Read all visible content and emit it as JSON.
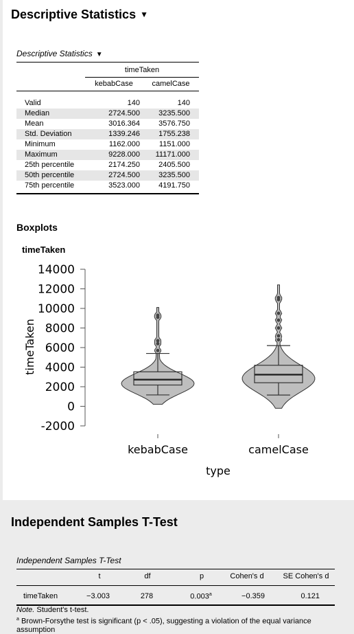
{
  "descriptives": {
    "title": "Descriptive Statistics",
    "table_caption": "Descriptive Statistics",
    "group_header": "timeTaken",
    "columns": [
      "kebabCase",
      "camelCase"
    ],
    "rows": [
      {
        "label": "Valid",
        "values": [
          "140",
          "140"
        ]
      },
      {
        "label": "Median",
        "values": [
          "2724.500",
          "3235.500"
        ]
      },
      {
        "label": "Mean",
        "values": [
          "3016.364",
          "3576.750"
        ]
      },
      {
        "label": "Std. Deviation",
        "values": [
          "1339.246",
          "1755.238"
        ]
      },
      {
        "label": "Minimum",
        "values": [
          "1162.000",
          "1151.000"
        ]
      },
      {
        "label": "Maximum",
        "values": [
          "9228.000",
          "11171.000"
        ]
      },
      {
        "label": "25th percentile",
        "values": [
          "2174.250",
          "2405.500"
        ]
      },
      {
        "label": "50th percentile",
        "values": [
          "2724.500",
          "3235.500"
        ]
      },
      {
        "label": "75th percentile",
        "values": [
          "3523.000",
          "4191.750"
        ]
      }
    ]
  },
  "boxplots": {
    "section_title": "Boxplots",
    "plot_title": "timeTaken"
  },
  "chart_data": {
    "type": "violin-boxplot",
    "ylabel": "timeTaken",
    "xlabel": "type",
    "ylim": [
      -2000,
      14000
    ],
    "yticks": [
      14000,
      12000,
      10000,
      8000,
      6000,
      4000,
      2000,
      0,
      -2000
    ],
    "categories": [
      "kebabCase",
      "camelCase"
    ],
    "groups": [
      {
        "name": "kebabCase",
        "q1": 2174.25,
        "median": 2724.5,
        "q3": 3523,
        "whisker_low": 1162,
        "whisker_high": 5400,
        "violin_min": 200,
        "violin_max": 10100,
        "outliers": [
          5700,
          6400,
          6700,
          9100,
          9300
        ]
      },
      {
        "name": "camelCase",
        "q1": 2405.5,
        "median": 3235.5,
        "q3": 4191.75,
        "whisker_low": 1151,
        "whisker_high": 6200,
        "violin_min": -200,
        "violin_max": 12400,
        "outliers": [
          6800,
          7200,
          8000,
          8800,
          9500,
          10900,
          11100
        ]
      }
    ],
    "colors": {
      "fill": "#bebebe",
      "stroke": "#333333"
    }
  },
  "ttest": {
    "title": "Independent Samples T-Test",
    "table_caption": "Independent Samples T-Test",
    "columns": [
      "",
      "t",
      "df",
      "p",
      "Cohen's d",
      "SE Cohen's d"
    ],
    "row": {
      "label": "timeTaken",
      "t": "−3.003",
      "df": "278",
      "p": "0.003",
      "p_sup": "a",
      "d": "−0.359",
      "se": "0.121"
    },
    "note_label": "Note.",
    "note_text": " Student's t-test.",
    "footnote_sup": "a",
    "footnote_text": " Brown-Forsythe test is significant (p < .05), suggesting a violation of the equal variance assumption"
  }
}
